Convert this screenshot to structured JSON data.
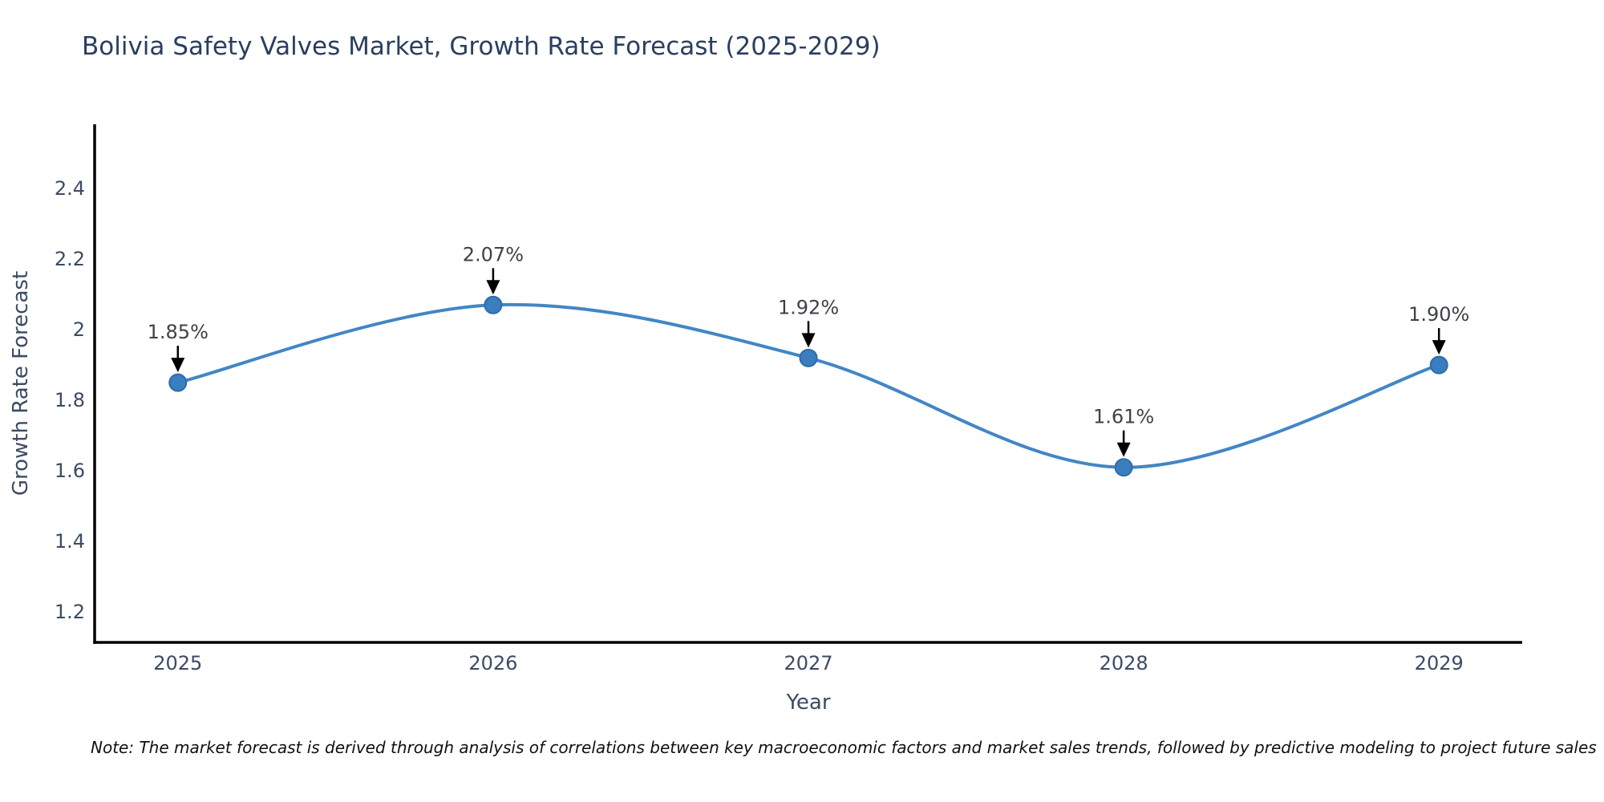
{
  "title": "Bolivia Safety Valves Market, Growth Rate Forecast (2025-2029)",
  "note": "Note: The market forecast is derived through analysis of correlations between key macroeconomic factors and market sales trends, followed by predictive modeling to project future sales",
  "chart_data": {
    "type": "line",
    "title": "Bolivia Safety Valves Market, Growth Rate Forecast (2025-2029)",
    "xlabel": "Year",
    "ylabel": "Growth Rate Forecast",
    "x": [
      2025,
      2026,
      2027,
      2028,
      2029
    ],
    "series": [
      {
        "name": "Growth Rate Forecast",
        "values": [
          1.85,
          2.07,
          1.92,
          1.61,
          1.9
        ]
      }
    ],
    "point_labels": [
      "1.85%",
      "2.07%",
      "1.92%",
      "1.61%",
      "1.90%"
    ],
    "x_tick_labels": [
      "2025",
      "2026",
      "2027",
      "2028",
      "2029"
    ],
    "y_ticks": [
      1.2,
      1.4,
      1.6,
      1.8,
      2,
      2.2,
      2.4
    ],
    "xlim": [
      2024.736,
      2029.264
    ],
    "ylim": [
      1.114,
      2.582
    ],
    "grid": false,
    "legend": false,
    "line_shape": "spline",
    "annotations_have_arrows": true,
    "colors": {
      "line": "#4286c5",
      "marker_fill": "#3a7ebf",
      "marker_border": "#2f6ba8",
      "axis_line": "#000000",
      "tick_label": "#3c4b63",
      "axis_title": "#3c4b63",
      "title": "#2a3f5f",
      "annotation_text": "#3d4248",
      "arrow": "#000000",
      "background": "#ffffff"
    }
  }
}
